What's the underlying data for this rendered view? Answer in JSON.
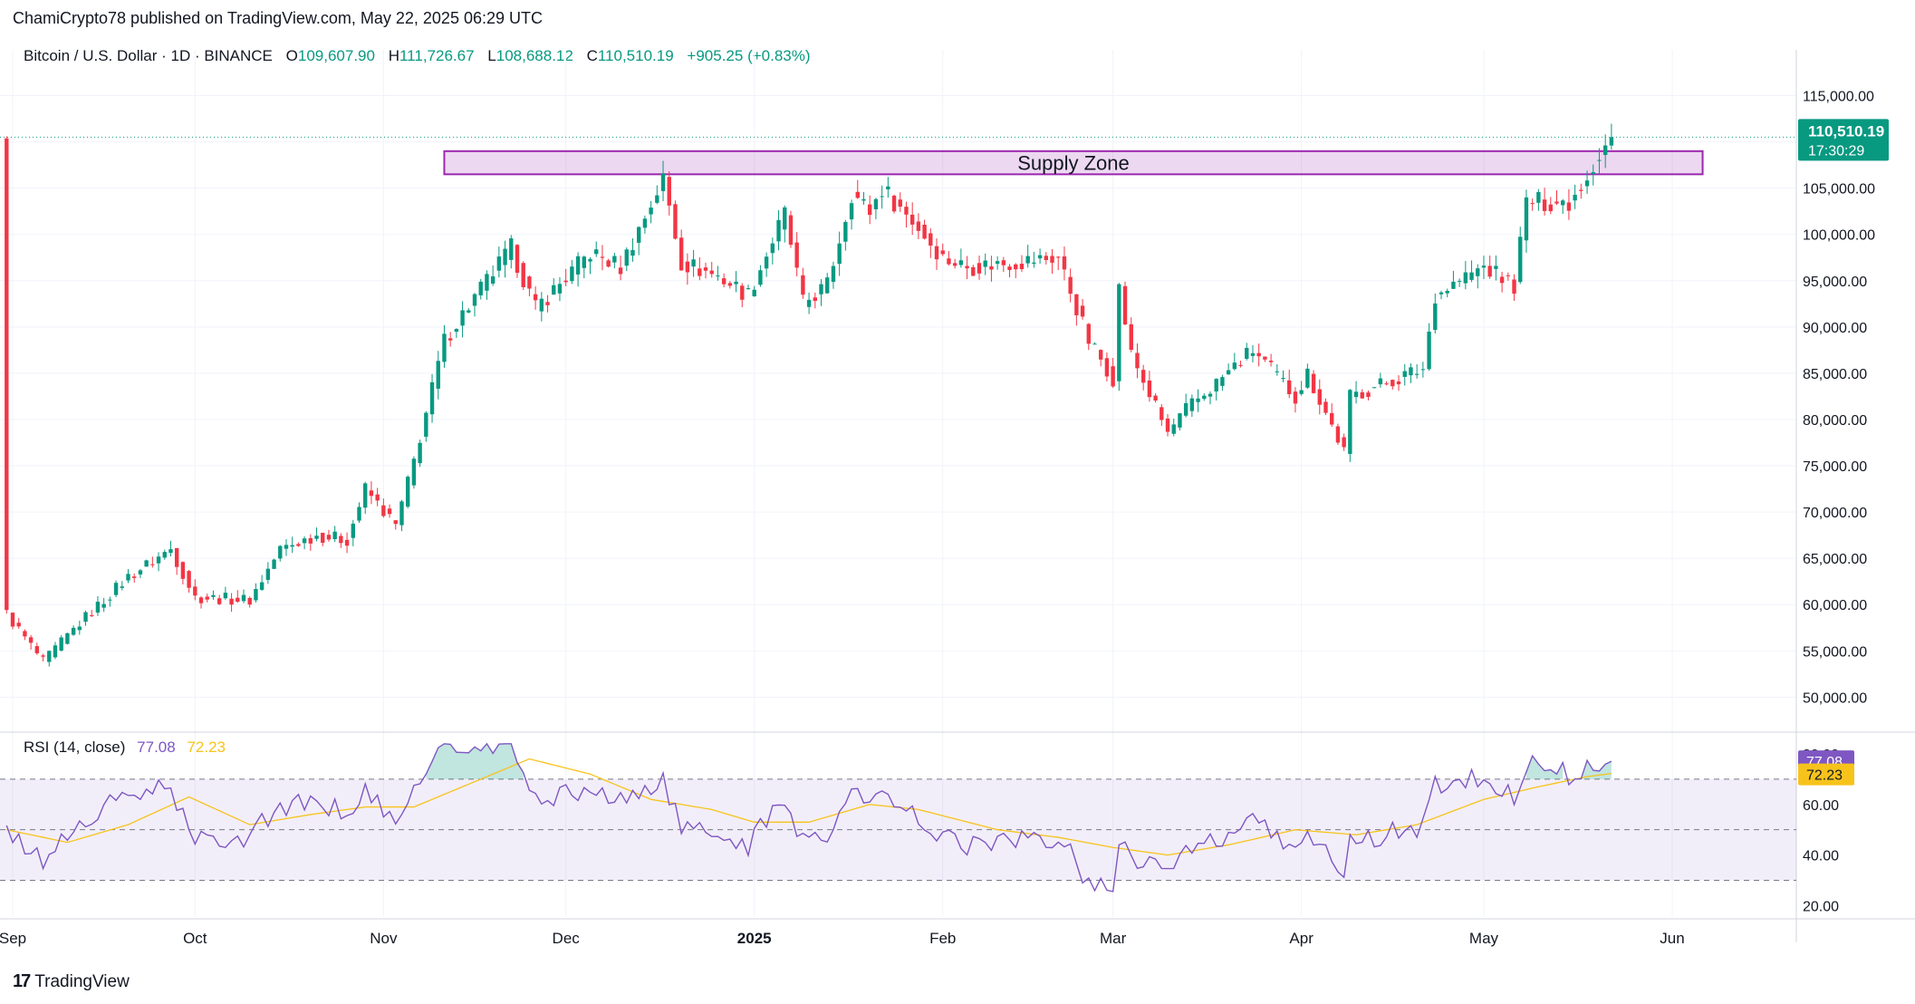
{
  "header": {
    "published": "ChamiCrypto78 published on TradingView.com, May 22, 2025 06:29 UTC"
  },
  "legend": {
    "symbol": "Bitcoin / U.S. Dollar · 1D · BINANCE",
    "open_label": "O",
    "open": "109,607.90",
    "high_label": "H",
    "high": "111,726.67",
    "low_label": "L",
    "low": "108,688.12",
    "close_label": "C",
    "close": "110,510.19",
    "change": "+905.25 (+0.83%)"
  },
  "rsi_legend": {
    "label": "RSI (14, close)",
    "rsi": "77.08",
    "ma": "72.23"
  },
  "brand": {
    "name": "TradingView"
  },
  "colors": {
    "up": "#089981",
    "down": "#f23645",
    "rsi": "#7e57c2",
    "rsi_ma": "#f7c31b",
    "zone": "#9c27b0"
  },
  "chart_data": [
    {
      "type": "candlestick",
      "title": "Bitcoin / U.S. Dollar · 1D · BINANCE",
      "x_tick_labels": [
        "Sep",
        "Oct",
        "Nov",
        "Dec",
        "2025",
        "Feb",
        "Mar",
        "Apr",
        "May",
        "Jun"
      ],
      "x_tick_dates": [
        "2024-09-01",
        "2024-10-01",
        "2024-11-01",
        "2024-12-01",
        "2025-01-01",
        "2025-02-01",
        "2025-03-01",
        "2025-04-01",
        "2025-05-01",
        "2025-06-01"
      ],
      "y_tick_labels": [
        "50,000.00",
        "55,000.00",
        "60,000.00",
        "65,000.00",
        "70,000.00",
        "75,000.00",
        "80,000.00",
        "85,000.00",
        "90,000.00",
        "95,000.00",
        "100,000.00",
        "105,000.00",
        "110,000.00",
        "115,000.00"
      ],
      "ylim": [
        47000,
        117500
      ],
      "grid": true,
      "last_price_label": "110,510.19",
      "countdown_label": "17:30:29",
      "last_price": 110510.19,
      "annotation": {
        "text": "Supply Zone",
        "price_low": 106500,
        "price_high": 109000,
        "date_from": "2024-11-11",
        "date_to": "2025-06-06"
      },
      "anchors": [
        [
          "2024-08-31",
          59000
        ],
        [
          "2024-09-06",
          53800
        ],
        [
          "2024-09-12",
          58000
        ],
        [
          "2024-09-20",
          63000
        ],
        [
          "2024-09-27",
          66000
        ],
        [
          "2024-10-01",
          60800
        ],
        [
          "2024-10-10",
          60500
        ],
        [
          "2024-10-15",
          66000
        ],
        [
          "2024-10-21",
          67500
        ],
        [
          "2024-10-26",
          67000
        ],
        [
          "2024-10-29",
          72500
        ],
        [
          "2024-11-03",
          68500
        ],
        [
          "2024-11-06",
          75500
        ],
        [
          "2024-11-11",
          88500
        ],
        [
          "2024-11-13",
          90500
        ],
        [
          "2024-11-22",
          98500
        ],
        [
          "2024-11-26",
          92000
        ],
        [
          "2024-12-05",
          98000
        ],
        [
          "2024-12-10",
          96500
        ],
        [
          "2024-12-17",
          106000
        ],
        [
          "2024-12-20",
          97000
        ],
        [
          "2024-12-26",
          95500
        ],
        [
          "2024-12-31",
          93500
        ],
        [
          "2025-01-06",
          102200
        ],
        [
          "2025-01-09",
          92500
        ],
        [
          "2025-01-13",
          94500
        ],
        [
          "2025-01-17",
          104500
        ],
        [
          "2025-01-20",
          102500
        ],
        [
          "2025-01-22",
          105000
        ],
        [
          "2025-01-27",
          101500
        ],
        [
          "2025-02-01",
          97500
        ],
        [
          "2025-02-05",
          96500
        ],
        [
          "2025-02-20",
          97500
        ],
        [
          "2025-02-25",
          88500
        ],
        [
          "2025-03-01",
          84500
        ],
        [
          "2025-03-02",
          94200
        ],
        [
          "2025-03-04",
          87000
        ],
        [
          "2025-03-10",
          78500
        ],
        [
          "2025-03-13",
          81000
        ],
        [
          "2025-03-24",
          87500
        ],
        [
          "2025-03-31",
          82500
        ],
        [
          "2025-04-02",
          85000
        ],
        [
          "2025-04-08",
          76500
        ],
        [
          "2025-04-09",
          82500
        ],
        [
          "2025-04-21",
          85500
        ],
        [
          "2025-04-23",
          93500
        ],
        [
          "2025-05-01",
          96500
        ],
        [
          "2025-05-06",
          94500
        ],
        [
          "2025-05-08",
          103500
        ],
        [
          "2025-05-15",
          103500
        ],
        [
          "2025-05-18",
          106500
        ],
        [
          "2025-05-21",
          109600
        ],
        [
          "2025-05-22",
          110510
        ]
      ]
    },
    {
      "type": "line",
      "title": "RSI (14, close)",
      "series": [
        {
          "name": "RSI",
          "last": 77.08
        },
        {
          "name": "RSI-based MA",
          "last": 72.23
        }
      ],
      "ylim": [
        18,
        85
      ],
      "y_tick_labels": [
        "20.00",
        "40.00",
        "60.00",
        "80.00"
      ],
      "bands": [
        70,
        50,
        30
      ],
      "last_labels": [
        "77.08",
        "72.23"
      ],
      "rsi_anchors": [
        [
          "2024-08-31",
          48
        ],
        [
          "2024-09-06",
          38
        ],
        [
          "2024-09-12",
          52
        ],
        [
          "2024-09-20",
          64
        ],
        [
          "2024-09-27",
          66
        ],
        [
          "2024-10-01",
          45
        ],
        [
          "2024-10-10",
          48
        ],
        [
          "2024-10-15",
          60
        ],
        [
          "2024-10-21",
          60
        ],
        [
          "2024-10-26",
          57
        ],
        [
          "2024-10-29",
          66
        ],
        [
          "2024-11-03",
          50
        ],
        [
          "2024-11-06",
          68
        ],
        [
          "2024-11-11",
          84
        ],
        [
          "2024-11-13",
          80
        ],
        [
          "2024-11-22",
          83
        ],
        [
          "2024-11-26",
          62
        ],
        [
          "2024-12-05",
          66
        ],
        [
          "2024-12-10",
          61
        ],
        [
          "2024-12-17",
          70
        ],
        [
          "2024-12-20",
          50
        ],
        [
          "2024-12-26",
          48
        ],
        [
          "2024-12-31",
          44
        ],
        [
          "2025-01-06",
          62
        ],
        [
          "2025-01-09",
          46
        ],
        [
          "2025-01-13",
          49
        ],
        [
          "2025-01-17",
          65
        ],
        [
          "2025-01-20",
          60
        ],
        [
          "2025-01-22",
          64
        ],
        [
          "2025-01-27",
          56
        ],
        [
          "2025-02-01",
          48
        ],
        [
          "2025-02-05",
          44
        ],
        [
          "2025-02-20",
          47
        ],
        [
          "2025-02-25",
          30
        ],
        [
          "2025-03-01",
          26
        ],
        [
          "2025-03-02",
          48
        ],
        [
          "2025-03-04",
          40
        ],
        [
          "2025-03-10",
          34
        ],
        [
          "2025-03-13",
          40
        ],
        [
          "2025-03-24",
          52
        ],
        [
          "2025-03-31",
          44
        ],
        [
          "2025-04-02",
          48
        ],
        [
          "2025-04-08",
          34
        ],
        [
          "2025-04-09",
          44
        ],
        [
          "2025-04-21",
          52
        ],
        [
          "2025-04-23",
          68
        ],
        [
          "2025-05-01",
          70
        ],
        [
          "2025-05-06",
          64
        ],
        [
          "2025-05-08",
          76
        ],
        [
          "2025-05-15",
          72
        ],
        [
          "2025-05-18",
          75
        ],
        [
          "2025-05-21",
          74
        ],
        [
          "2025-05-22",
          77.08
        ]
      ],
      "ma_anchors": [
        [
          "2024-08-31",
          50
        ],
        [
          "2024-09-10",
          45
        ],
        [
          "2024-09-20",
          52
        ],
        [
          "2024-09-30",
          63
        ],
        [
          "2024-10-10",
          52
        ],
        [
          "2024-10-20",
          56
        ],
        [
          "2024-10-29",
          59
        ],
        [
          "2024-11-06",
          59
        ],
        [
          "2024-11-15",
          68
        ],
        [
          "2024-11-25",
          78
        ],
        [
          "2024-12-05",
          72
        ],
        [
          "2024-12-15",
          62
        ],
        [
          "2024-12-25",
          58
        ],
        [
          "2025-01-01",
          53
        ],
        [
          "2025-01-10",
          53
        ],
        [
          "2025-01-20",
          60
        ],
        [
          "2025-01-28",
          58
        ],
        [
          "2025-02-10",
          50
        ],
        [
          "2025-02-20",
          47
        ],
        [
          "2025-03-01",
          43
        ],
        [
          "2025-03-10",
          40
        ],
        [
          "2025-03-20",
          44
        ],
        [
          "2025-03-31",
          50
        ],
        [
          "2025-04-10",
          48
        ],
        [
          "2025-04-20",
          52
        ],
        [
          "2025-05-01",
          62
        ],
        [
          "2025-05-10",
          67
        ],
        [
          "2025-05-18",
          71
        ],
        [
          "2025-05-22",
          72.23
        ]
      ]
    }
  ]
}
